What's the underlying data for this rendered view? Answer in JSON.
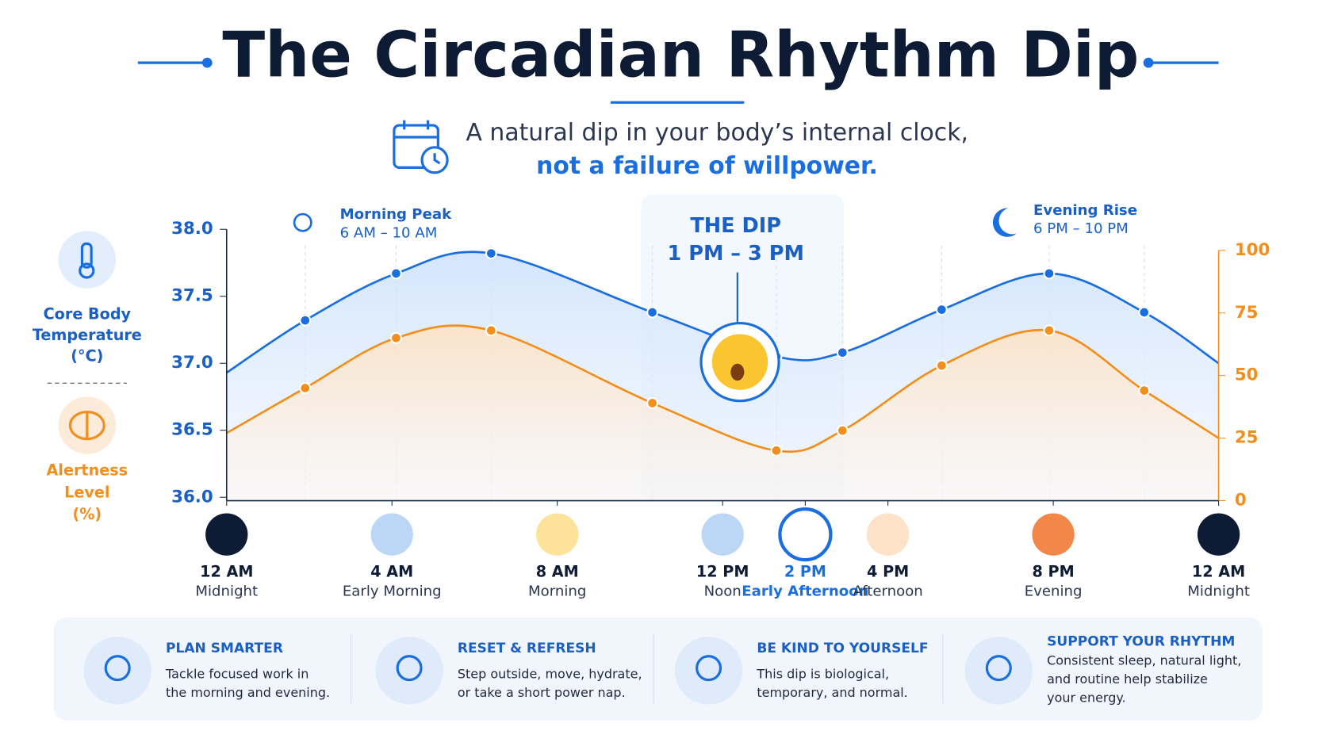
{
  "header": {
    "title": "The Circadian Rhythm Dip",
    "subtitle_line1": "A natural dip in your body’s internal clock,",
    "subtitle_line2": "not a failure of willpower."
  },
  "chart_data": {
    "type": "line",
    "x": [
      0,
      1.9,
      4.1,
      6.4,
      10.3,
      13.3,
      14.9,
      17.3,
      19.9,
      22.2,
      24
    ],
    "xlim": [
      0,
      24
    ],
    "xticks": [
      {
        "value": 0,
        "label": "12 AM"
      },
      {
        "value": 4,
        "label": "4 AM"
      },
      {
        "value": 8,
        "label": "8 AM"
      },
      {
        "value": 12,
        "label": "12 PM"
      },
      {
        "value": 14,
        "label": "2 PM"
      },
      {
        "value": 16,
        "label": "4 PM"
      },
      {
        "value": 20,
        "label": "8 PM"
      },
      {
        "value": 24,
        "label": "12 AM"
      }
    ],
    "xtick_sublabels": [
      "Midnight",
      "Early Morning",
      "Morning",
      "Noon",
      "Early Afternoon",
      "Afternoon",
      "Evening",
      "Midnight"
    ],
    "ylim": [
      36,
      38
    ],
    "yticks": [
      {
        "value": 36,
        "label": "36.0"
      },
      {
        "value": 36.5,
        "label": "36.5"
      },
      {
        "value": 37,
        "label": "37.0"
      },
      {
        "value": 37.5,
        "label": "37.5"
      },
      {
        "value": 38,
        "label": "38.0"
      }
    ],
    "y2lim": [
      0,
      100
    ],
    "y2ticks": [
      0,
      25,
      50,
      75,
      100
    ],
    "ylabel": [
      "Core Body",
      "Temperature",
      "(°C)"
    ],
    "y2label": [
      "Alertness",
      "Level",
      "(%)"
    ],
    "series": [
      {
        "color": "#1a6fe0",
        "values": [
          36.93,
          37.32,
          37.67,
          37.82,
          37.38,
          37.05,
          37.08,
          37.4,
          37.67,
          37.38,
          37.0
        ]
      },
      {
        "color": "#f28f1c",
        "axis": "y2",
        "values": [
          27,
          45,
          65,
          68,
          39,
          20,
          28,
          54,
          68,
          44,
          25
        ]
      }
    ],
    "annotations": [
      {
        "title": "Morning Peak",
        "text": "6 AM – 10 AM"
      },
      {
        "title": "THE DIP",
        "text": "1 PM – 3 PM"
      },
      {
        "title": "Evening Rise",
        "text": "6 PM – 10 PM"
      }
    ]
  },
  "tips": [
    {
      "title": "PLAN SMARTER",
      "lines": [
        "Tackle focused work in",
        "the morning and evening."
      ]
    },
    {
      "title": "RESET & REFRESH",
      "lines": [
        "Step outside, move, hydrate,",
        "or take a short power nap."
      ]
    },
    {
      "title": "BE KIND TO YOURSELF",
      "lines": [
        "This dip is biological,",
        "temporary, and normal."
      ]
    },
    {
      "title": "SUPPORT YOUR RHYTHM",
      "lines": [
        "Consistent sleep, natural light,",
        "and routine help stabilize",
        "your energy."
      ]
    }
  ]
}
